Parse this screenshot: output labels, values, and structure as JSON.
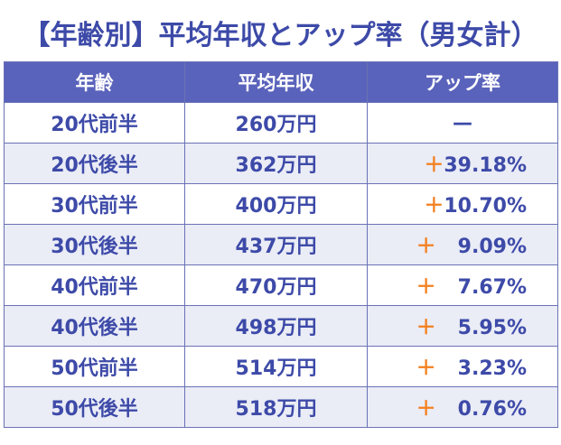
{
  "title": "【年齢別】平均年収とアップ率（男女計）",
  "headers": {
    "age": "年齢",
    "income": "平均年収",
    "rate": "アップ率"
  },
  "rows": [
    {
      "age": "20代前半",
      "income": "260万円",
      "plus": "",
      "rate": "—"
    },
    {
      "age": "20代後半",
      "income": "362万円",
      "plus": "＋",
      "rate": "39.18%"
    },
    {
      "age": "30代前半",
      "income": "400万円",
      "plus": "＋",
      "rate": "10.70%"
    },
    {
      "age": "30代後半",
      "income": "437万円",
      "plus": "＋",
      "rate": "9.09%"
    },
    {
      "age": "40代前半",
      "income": "470万円",
      "plus": "＋",
      "rate": "7.67%"
    },
    {
      "age": "40代後半",
      "income": "498万円",
      "plus": "＋",
      "rate": "5.95%"
    },
    {
      "age": "50代前半",
      "income": "514万円",
      "plus": "＋",
      "rate": "3.23%"
    },
    {
      "age": "50代後半",
      "income": "518万円",
      "plus": "＋",
      "rate": "0.76%"
    }
  ],
  "colors": {
    "header_bg": "#5a63bb",
    "text": "#3d4aa8",
    "plus_sign": "#f4801f",
    "stripe": "#eaecf6"
  }
}
